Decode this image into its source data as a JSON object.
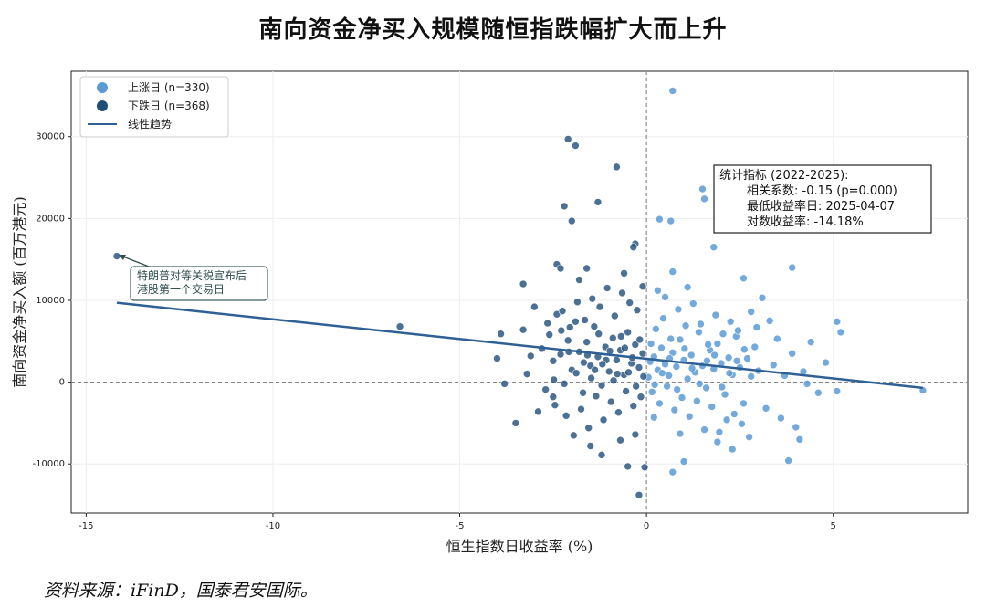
{
  "chart_data": {
    "type": "scatter",
    "title": "南向资金净买入规模随恒指跌幅扩大而上升",
    "xlabel": "恒生指数日收益率 (%)",
    "ylabel": "南向资金净买入额 (百万港元)",
    "xlim": [
      -15.4,
      8.6
    ],
    "ylim": [
      -16000,
      38000
    ],
    "xticks": [
      -15,
      -10,
      -5,
      0,
      5
    ],
    "yticks": [
      -10000,
      0,
      10000,
      20000,
      30000
    ],
    "grid": true,
    "legend_position": "top-left",
    "legend": [
      "上涨日 (n=330)",
      "下跌日 (n=368)",
      "线性趋势"
    ],
    "colors": {
      "up": "#5b9bd5",
      "down": "#1f4e79",
      "trend": "#2e6096"
    },
    "series": [
      {
        "name": "上涨日 (n=330)",
        "points": [
          [
            0.7,
            35600
          ],
          [
            1.5,
            23600
          ],
          [
            1.55,
            22400
          ],
          [
            0.35,
            19900
          ],
          [
            0.65,
            19700
          ],
          [
            1.8,
            16500
          ],
          [
            3.9,
            14000
          ],
          [
            2.6,
            12700
          ],
          [
            0.7,
            13500
          ],
          [
            5.1,
            7400
          ],
          [
            5.2,
            6100
          ],
          [
            7.4,
            -1000
          ],
          [
            5.1,
            -1100
          ],
          [
            4.6,
            -1300
          ],
          [
            3.8,
            -9600
          ],
          [
            0.7,
            -11000
          ],
          [
            1.0,
            -9700
          ],
          [
            0.2,
            -4300
          ],
          [
            4.1,
            -7000
          ],
          [
            4.0,
            -5500
          ],
          [
            4.4,
            4900
          ],
          [
            3.3,
            7500
          ],
          [
            2.8,
            8600
          ],
          [
            3.1,
            10300
          ],
          [
            3.9,
            3500
          ],
          [
            4.2,
            1300
          ],
          [
            0.1,
            2500
          ],
          [
            0.2,
            3100
          ],
          [
            0.3,
            1500
          ],
          [
            0.4,
            4200
          ],
          [
            0.5,
            2200
          ],
          [
            0.6,
            800
          ],
          [
            0.7,
            3600
          ],
          [
            0.8,
            1900
          ],
          [
            0.9,
            5200
          ],
          [
            1.0,
            2700
          ],
          [
            1.1,
            400
          ],
          [
            1.2,
            3300
          ],
          [
            1.3,
            1200
          ],
          [
            1.4,
            6100
          ],
          [
            1.5,
            2000
          ],
          [
            1.6,
            -700
          ],
          [
            1.7,
            3900
          ],
          [
            1.8,
            1600
          ],
          [
            1.9,
            4700
          ],
          [
            2.0,
            2300
          ],
          [
            2.1,
            -1500
          ],
          [
            2.2,
            3000
          ],
          [
            2.3,
            900
          ],
          [
            2.4,
            5600
          ],
          [
            2.5,
            1800
          ],
          [
            2.6,
            -2600
          ],
          [
            2.7,
            2900
          ],
          [
            2.8,
            700
          ],
          [
            2.9,
            4300
          ],
          [
            3.0,
            1400
          ],
          [
            0.15,
            -1200
          ],
          [
            0.25,
            6500
          ],
          [
            0.35,
            -2600
          ],
          [
            0.45,
            7800
          ],
          [
            0.55,
            -500
          ],
          [
            0.65,
            5300
          ],
          [
            0.75,
            -3400
          ],
          [
            0.85,
            8900
          ],
          [
            0.95,
            -1900
          ],
          [
            1.05,
            6900
          ],
          [
            1.15,
            -4200
          ],
          [
            1.25,
            9600
          ],
          [
            1.35,
            -2300
          ],
          [
            1.45,
            7100
          ],
          [
            1.55,
            -5800
          ],
          [
            1.65,
            4600
          ],
          [
            1.75,
            -3000
          ],
          [
            1.85,
            8200
          ],
          [
            1.95,
            -6100
          ],
          [
            2.05,
            5900
          ],
          [
            2.15,
            -4600
          ],
          [
            2.25,
            7400
          ],
          [
            2.35,
            -3900
          ],
          [
            2.45,
            6300
          ],
          [
            2.55,
            -5100
          ],
          [
            2.75,
            -6700
          ],
          [
            2.95,
            6700
          ],
          [
            3.2,
            -3200
          ],
          [
            3.4,
            2100
          ],
          [
            3.6,
            -4400
          ],
          [
            3.5,
            5300
          ],
          [
            4.3,
            -200
          ],
          [
            4.8,
            2400
          ],
          [
            3.7,
            800
          ],
          [
            0.3,
            11200
          ],
          [
            0.5,
            10400
          ],
          [
            1.1,
            11600
          ],
          [
            0.9,
            -6300
          ],
          [
            1.9,
            -7300
          ],
          [
            2.3,
            -8200
          ],
          [
            0.05,
            600
          ],
          [
            0.12,
            4700
          ],
          [
            0.22,
            -300
          ],
          [
            0.42,
            1100
          ],
          [
            0.62,
            2900
          ],
          [
            0.82,
            -900
          ],
          [
            1.02,
            4100
          ],
          [
            1.22,
            1700
          ],
          [
            1.42,
            -200
          ],
          [
            1.62,
            2600
          ],
          [
            1.82,
            3300
          ],
          [
            2.02,
            -600
          ],
          [
            2.22,
            1100
          ],
          [
            2.42,
            2600
          ],
          [
            2.62,
            4000
          ]
        ]
      },
      {
        "name": "下跌日 (n=368)",
        "points": [
          [
            -14.18,
            15400
          ],
          [
            -6.6,
            6800
          ],
          [
            -2.1,
            29700
          ],
          [
            -1.9,
            28900
          ],
          [
            -0.8,
            26300
          ],
          [
            -1.3,
            22000
          ],
          [
            -2.2,
            21500
          ],
          [
            -2.0,
            19700
          ],
          [
            -0.3,
            16900
          ],
          [
            -0.35,
            16500
          ],
          [
            -2.4,
            14400
          ],
          [
            -2.3,
            13900
          ],
          [
            -3.3,
            12000
          ],
          [
            -1.8,
            12500
          ],
          [
            -3.9,
            5900
          ],
          [
            -4.0,
            2900
          ],
          [
            -3.8,
            -200
          ],
          [
            -3.5,
            -5000
          ],
          [
            -0.5,
            -10300
          ],
          [
            -0.2,
            -13800
          ],
          [
            -1.2,
            -8900
          ],
          [
            -0.05,
            -10400
          ],
          [
            -2.5,
            -1800
          ],
          [
            -3.1,
            3200
          ],
          [
            -0.1,
            3500
          ],
          [
            -0.2,
            1800
          ],
          [
            -0.3,
            4600
          ],
          [
            -0.4,
            2300
          ],
          [
            -0.5,
            6100
          ],
          [
            -0.6,
            900
          ],
          [
            -0.7,
            3900
          ],
          [
            -0.8,
            2700
          ],
          [
            -0.9,
            5400
          ],
          [
            -1.0,
            1300
          ],
          [
            -1.1,
            4300
          ],
          [
            -1.2,
            -400
          ],
          [
            -1.3,
            3100
          ],
          [
            -1.4,
            6800
          ],
          [
            -1.5,
            2000
          ],
          [
            -1.6,
            4900
          ],
          [
            -1.7,
            -1300
          ],
          [
            -1.8,
            3700
          ],
          [
            -1.9,
            7400
          ],
          [
            -2.0,
            1500
          ],
          [
            -2.1,
            5100
          ],
          [
            -2.2,
            -200
          ],
          [
            -2.3,
            3400
          ],
          [
            -2.4,
            8300
          ],
          [
            -2.5,
            2600
          ],
          [
            -2.6,
            5800
          ],
          [
            -2.7,
            -900
          ],
          [
            -2.8,
            4100
          ],
          [
            -0.15,
            -1800
          ],
          [
            -0.25,
            8800
          ],
          [
            -0.35,
            -2900
          ],
          [
            -0.45,
            9700
          ],
          [
            -0.55,
            -1100
          ],
          [
            -0.65,
            10900
          ],
          [
            -0.75,
            -3700
          ],
          [
            -0.85,
            8100
          ],
          [
            -0.95,
            -2400
          ],
          [
            -1.05,
            11500
          ],
          [
            -1.15,
            -4600
          ],
          [
            -1.25,
            9200
          ],
          [
            -1.35,
            -1700
          ],
          [
            -1.45,
            10200
          ],
          [
            -1.55,
            -5600
          ],
          [
            -1.65,
            7600
          ],
          [
            -1.75,
            -3300
          ],
          [
            -1.85,
            9800
          ],
          [
            -1.95,
            -6500
          ],
          [
            -2.05,
            6700
          ],
          [
            -2.15,
            -4100
          ],
          [
            -2.25,
            8700
          ],
          [
            -2.45,
            -2800
          ],
          [
            -2.65,
            7200
          ],
          [
            -2.9,
            -3600
          ],
          [
            -3.0,
            9200
          ],
          [
            -3.2,
            1000
          ],
          [
            -3.3,
            6400
          ],
          [
            -0.1,
            11700
          ],
          [
            -0.6,
            13300
          ],
          [
            -1.6,
            13900
          ],
          [
            -0.3,
            -6400
          ],
          [
            -0.7,
            -7100
          ],
          [
            -1.5,
            -7800
          ],
          [
            -0.08,
            700
          ],
          [
            -0.18,
            5200
          ],
          [
            -0.28,
            -500
          ],
          [
            -0.48,
            1200
          ],
          [
            -0.68,
            5600
          ],
          [
            -0.88,
            200
          ],
          [
            -1.08,
            2700
          ],
          [
            -1.28,
            5900
          ],
          [
            -1.48,
            500
          ],
          [
            -1.68,
            2400
          ],
          [
            -1.88,
            1100
          ],
          [
            -2.08,
            3700
          ],
          [
            -2.28,
            6300
          ],
          [
            -2.48,
            300
          ],
          [
            -0.38,
            3000
          ],
          [
            -0.58,
            4200
          ],
          [
            -0.78,
            1000
          ],
          [
            -0.98,
            3800
          ],
          [
            -1.18,
            2200
          ],
          [
            -1.38,
            1500
          ],
          [
            -1.58,
            3300
          ]
        ]
      }
    ],
    "trend": {
      "slope": -482,
      "intercept": 2865,
      "x_range": [
        -14.18,
        7.4
      ]
    },
    "annotations": {
      "arrow_note": [
        "特朗普对等关税宣布后",
        "港股第一个交易日"
      ],
      "stats_box": [
        "统计指标 (2022-2025):",
        "相关系数: -0.15 (p=0.000)",
        "最低收益率日: 2025-04-07",
        "对数收益率: -14.18%"
      ]
    }
  },
  "source": "资料来源：iFinD，国泰君安国际。"
}
